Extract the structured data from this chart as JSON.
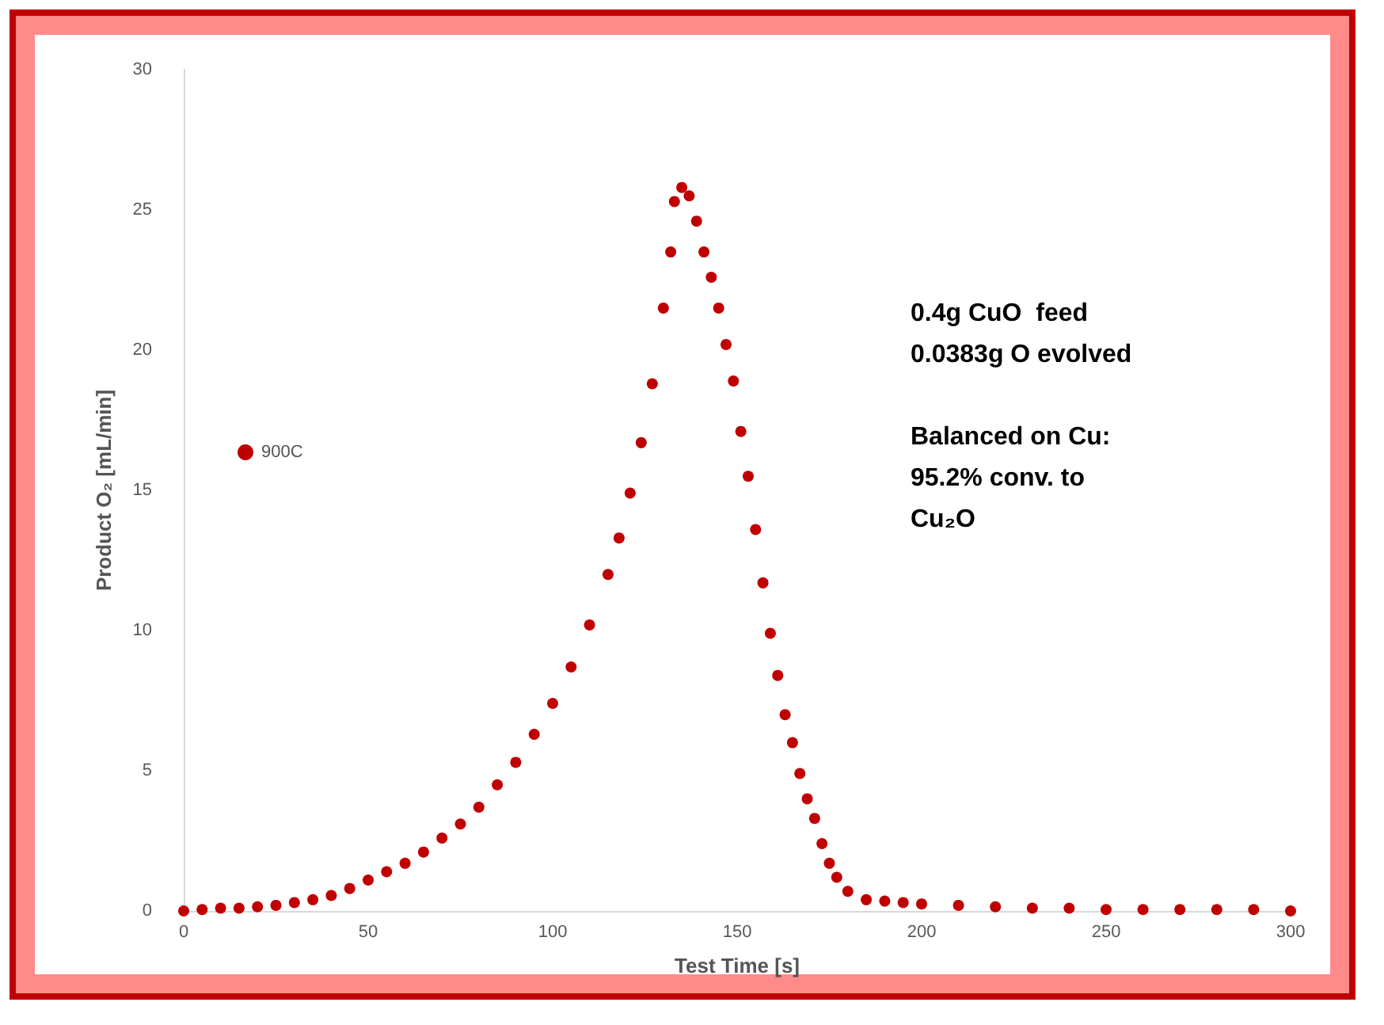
{
  "chart_data": {
    "type": "scatter",
    "xlabel": "Test Time [s]",
    "ylabel": "Product O₂ [mL/min]",
    "xlim": [
      0,
      300
    ],
    "xticks": [
      0,
      50,
      100,
      150,
      200,
      250,
      300
    ],
    "ylim": [
      0,
      30
    ],
    "yticks": [
      0,
      5,
      10,
      15,
      20,
      25,
      30
    ],
    "grid": false,
    "legend": "left",
    "marker": "circle",
    "annotations": [
      "0.4g CuO  feed",
      "0.0383g O evolved",
      "Balanced on Cu:",
      "95.2% conv. to",
      "Cu₂O"
    ],
    "series": [
      {
        "name": "900C",
        "color": "#c00000",
        "x": [
          0,
          5,
          10,
          15,
          20,
          25,
          30,
          35,
          40,
          45,
          50,
          55,
          60,
          65,
          70,
          75,
          80,
          85,
          90,
          95,
          100,
          105,
          110,
          115,
          118,
          121,
          124,
          127,
          130,
          132,
          133,
          135,
          137,
          139,
          141,
          143,
          145,
          147,
          149,
          151,
          153,
          155,
          157,
          159,
          161,
          163,
          165,
          167,
          169,
          171,
          173,
          175,
          177,
          180,
          185,
          190,
          195,
          200,
          210,
          220,
          230,
          240,
          250,
          260,
          270,
          280,
          290,
          300
        ],
        "values": [
          0,
          0.05,
          0.1,
          0.1,
          0.15,
          0.2,
          0.3,
          0.4,
          0.55,
          0.8,
          1.1,
          1.4,
          1.7,
          2.1,
          2.6,
          3.1,
          3.7,
          4.5,
          5.3,
          6.3,
          7.4,
          8.7,
          10.2,
          12,
          13.3,
          14.9,
          16.7,
          18.8,
          21.5,
          23.5,
          25.3,
          25.8,
          25.5,
          24.6,
          23.5,
          22.6,
          21.5,
          20.2,
          18.9,
          17.1,
          15.5,
          13.6,
          11.7,
          9.9,
          8.4,
          7,
          6,
          4.9,
          4,
          3.3,
          2.4,
          1.7,
          1.2,
          0.7,
          0.4,
          0.35,
          0.3,
          0.25,
          0.2,
          0.15,
          0.1,
          0.1,
          0.05,
          0.05,
          0.05,
          0.05,
          0.05,
          0
        ]
      }
    ]
  }
}
